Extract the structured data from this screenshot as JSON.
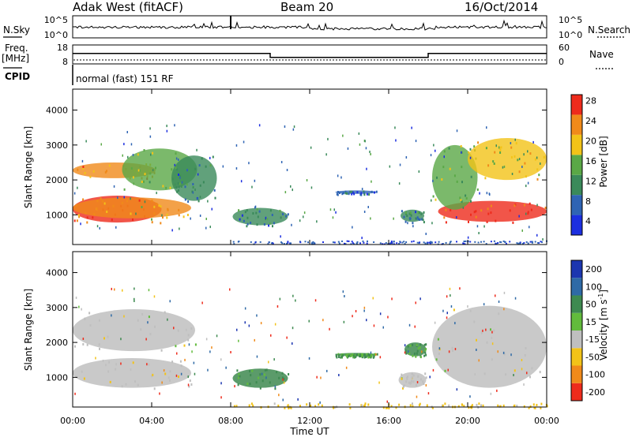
{
  "header": {
    "station": "Adak West (fitACF)",
    "beam": "Beam 20",
    "date": "16/Oct/2014",
    "cpid_value": "normal (fast) 151 RF"
  },
  "noise_panel": {
    "left_label": "N.Sky",
    "right_label": "N.Search",
    "left_ticks": [
      "10^5",
      "10^0"
    ],
    "right_ticks": [
      "10^5",
      "10^0"
    ]
  },
  "freq_panel": {
    "left_label_1": "Freq.",
    "left_label_2": "[MHz]",
    "right_label": "Nave",
    "cpid_label": "CPID",
    "left_ticks": [
      "18",
      "8"
    ],
    "right_ticks": [
      "60",
      "0"
    ]
  },
  "axes": {
    "xlabel": "Time UT",
    "x_ticks": [
      "00:00",
      "04:00",
      "08:00",
      "12:00",
      "16:00",
      "20:00",
      "00:00"
    ],
    "ylabel": "Slant Range [km]",
    "y_ticks": [
      "1000",
      "2000",
      "3000",
      "4000"
    ]
  },
  "colorbars": {
    "power": {
      "label": "Power [dB]",
      "ticks": [
        "4",
        "8",
        "12",
        "16",
        "20",
        "24",
        "28"
      ],
      "colors": [
        "#1c2fe0",
        "#2f64b4",
        "#3a8a5a",
        "#5aa846",
        "#f2c318",
        "#f08a1a",
        "#ee2b1c"
      ]
    },
    "velocity": {
      "label_main": "Velocity [m s",
      "label_sup": "-1",
      "label_close": "]",
      "ticks": [
        "200",
        "100",
        "50",
        "15",
        "-15",
        "-50",
        "-100",
        "-200"
      ],
      "colors": [
        "#1c36b0",
        "#2f6aa6",
        "#3e8a50",
        "#62bb3c",
        "#bfbfbf",
        "#f2c318",
        "#f08a1a",
        "#ee2b1c"
      ]
    }
  },
  "chart_data": {
    "type": "heatmap",
    "x_unit": "hours UT",
    "xlim": [
      0,
      24
    ],
    "ylim": [
      150,
      4600
    ],
    "frequency": {
      "segments": [
        {
          "x0": 0,
          "x1": 10,
          "value": 13.5
        },
        {
          "x0": 10,
          "x1": 18,
          "value": 11.4
        },
        {
          "x0": 18,
          "x1": 24,
          "value": 13.5
        }
      ]
    },
    "power_regions": [
      {
        "x": [
          0,
          4.5
        ],
        "y": [
          780,
          1550
        ],
        "dB": 28
      },
      {
        "x": [
          0,
          6
        ],
        "y": [
          900,
          1500
        ],
        "dB": 22
      },
      {
        "x": [
          0,
          4.2
        ],
        "y": [
          2050,
          2500
        ],
        "dB": 22
      },
      {
        "x": [
          2.5,
          6.3
        ],
        "y": [
          1700,
          2900
        ],
        "dB": 16
      },
      {
        "x": [
          5,
          7.3
        ],
        "y": [
          1400,
          2700
        ],
        "dB": 10
      },
      {
        "x": [
          8.1,
          10.9
        ],
        "y": [
          700,
          1200
        ],
        "dB": 10
      },
      {
        "x": [
          13.3,
          15.4
        ],
        "y": [
          1600,
          1700
        ],
        "dB": 8
      },
      {
        "x": [
          16.6,
          17.8
        ],
        "y": [
          800,
          1150
        ],
        "dB": 10
      },
      {
        "x": [
          18.5,
          24
        ],
        "y": [
          800,
          1400
        ],
        "dB": 28
      },
      {
        "x": [
          18.2,
          20.5
        ],
        "y": [
          1150,
          3000
        ],
        "dB": 16
      },
      {
        "x": [
          20,
          24
        ],
        "y": [
          2000,
          3200
        ],
        "dB": 20
      }
    ],
    "velocity_regions": [
      {
        "x": [
          0,
          6
        ],
        "y": [
          700,
          1550
        ],
        "v": 0
      },
      {
        "x": [
          0,
          6.2
        ],
        "y": [
          1750,
          2950
        ],
        "v": 0
      },
      {
        "x": [
          8.1,
          10.9
        ],
        "y": [
          700,
          1250
        ],
        "v": 35
      },
      {
        "x": [
          13.3,
          15.4
        ],
        "y": [
          1600,
          1700
        ],
        "v": 35
      },
      {
        "x": [
          16.5,
          17.9
        ],
        "y": [
          700,
          1150
        ],
        "v": 0
      },
      {
        "x": [
          16.8,
          17.9
        ],
        "y": [
          1600,
          2000
        ],
        "v": 35
      },
      {
        "x": [
          18.2,
          24
        ],
        "y": [
          700,
          3050
        ],
        "v": 0
      },
      {
        "x": [
          8,
          24
        ],
        "y": [
          150,
          280
        ],
        "v": -30
      }
    ]
  }
}
